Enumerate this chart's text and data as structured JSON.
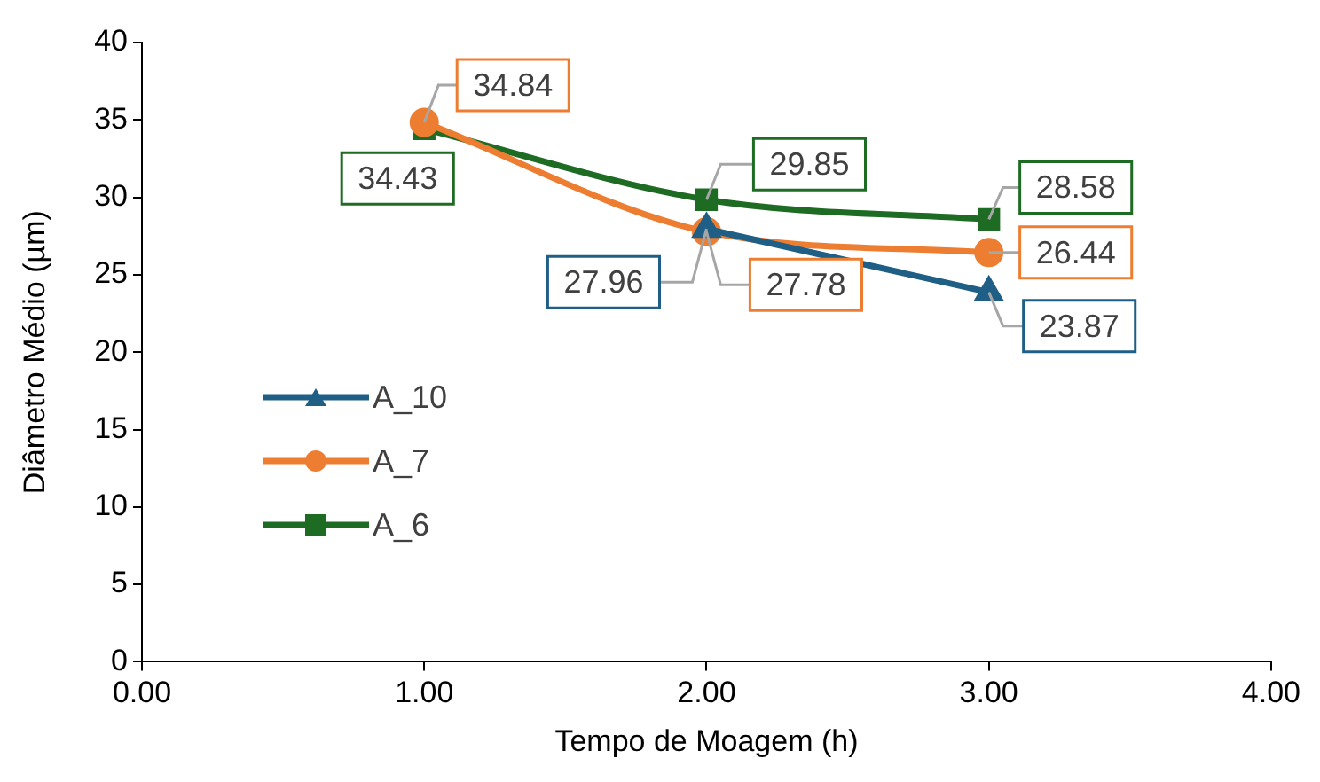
{
  "chart_data": {
    "type": "line",
    "xlabel": "Tempo de Moagem (h)",
    "ylabel": "Diâmetro Médio (µm)",
    "x": [
      1,
      2,
      3
    ],
    "series": [
      {
        "name": "A_10",
        "color": "#1f5f86",
        "marker": "triangle",
        "values": [
          null,
          27.96,
          23.87
        ]
      },
      {
        "name": "A_7",
        "color": "#ed7d31",
        "marker": "circle",
        "values": [
          34.84,
          27.78,
          26.44
        ]
      },
      {
        "name": "A_6",
        "color": "#1e6b24",
        "marker": "square",
        "values": [
          34.43,
          29.85,
          28.58
        ]
      }
    ],
    "xlim": [
      0,
      4
    ],
    "xticks": [
      {
        "value": 0,
        "label": "0.00"
      },
      {
        "value": 1,
        "label": "1.00"
      },
      {
        "value": 2,
        "label": "2.00"
      },
      {
        "value": 3,
        "label": "3.00"
      },
      {
        "value": 4,
        "label": "4.00"
      }
    ],
    "ylim": [
      0,
      40
    ],
    "yticks": [
      0,
      5,
      10,
      15,
      20,
      25,
      30,
      35,
      40
    ],
    "grid": false,
    "legend": "left",
    "data_labels": true
  }
}
